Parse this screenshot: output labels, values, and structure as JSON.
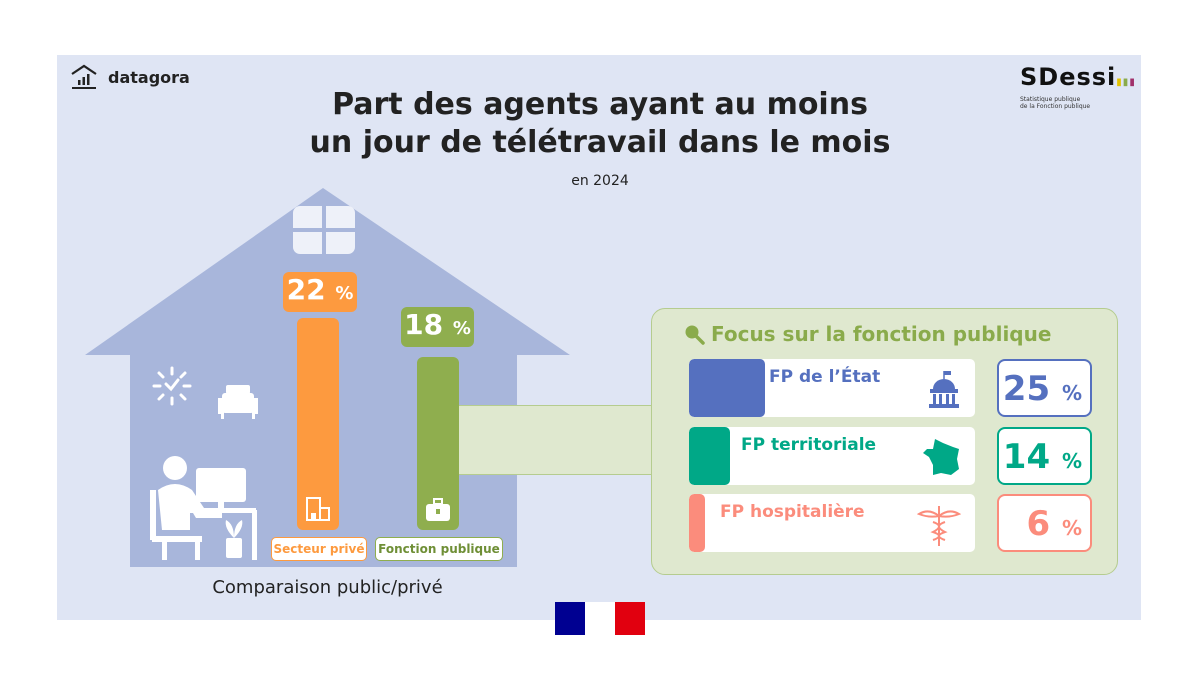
{
  "header": {
    "brand": "datagora",
    "title_line1": "Part des agents ayant au moins",
    "title_line2": "un jour de télétravail dans le mois",
    "subtitle": "en 2024",
    "partner": {
      "name": "SDessi",
      "tagline1": "Statistique publique",
      "tagline2": "de la Fonction publique"
    }
  },
  "comparison": {
    "caption": "Comparaison public/privé",
    "items": [
      {
        "label": "Secteur privé",
        "value": "22",
        "unit": "%",
        "color": "#fd9a3f",
        "icon": "office-building-icon"
      },
      {
        "label": "Fonction publique",
        "value": "18",
        "unit": "%",
        "color": "#8fae4e",
        "icon": "briefcase-icon"
      }
    ]
  },
  "focus": {
    "title": "Focus sur la fonction publique",
    "items": [
      {
        "label": "FP de l’État",
        "value": "25",
        "unit": "%",
        "color": "#5570bf",
        "icon": "government-building-icon"
      },
      {
        "label": "FP territoriale",
        "value": "14",
        "unit": "%",
        "color": "#00a887",
        "icon": "france-map-icon"
      },
      {
        "label": "FP hospitalière",
        "value": "6",
        "unit": "%",
        "color": "#fb8c7c",
        "icon": "caduceus-icon"
      }
    ]
  },
  "chart_data": {
    "type": "bar",
    "title": "Part des agents ayant au moins un jour de télétravail dans le mois",
    "subtitle": "en 2024",
    "categories": [
      "Secteur privé",
      "Fonction publique",
      "FP de l’État",
      "FP territoriale",
      "FP hospitalière"
    ],
    "values": [
      22,
      18,
      25,
      14,
      6
    ],
    "unit": "%"
  }
}
